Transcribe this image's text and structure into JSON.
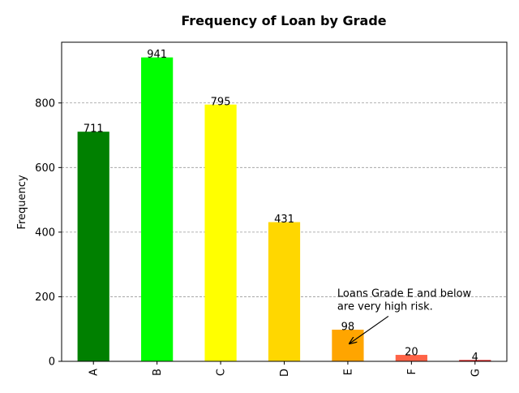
{
  "chart_data": {
    "type": "bar",
    "title": "Frequency of Loan by Grade",
    "xlabel": "",
    "ylabel": "Frequency",
    "categories": [
      "A",
      "B",
      "C",
      "D",
      "E",
      "F",
      "G"
    ],
    "values": [
      711,
      941,
      795,
      431,
      98,
      20,
      4
    ],
    "colors": [
      "#008000",
      "#00ff00",
      "#ffff00",
      "#ffd700",
      "#ffa500",
      "#ff6347",
      "#dc1414"
    ],
    "ylim": [
      0,
      988
    ],
    "yticks": [
      0,
      200,
      400,
      600,
      800
    ],
    "grid": "y-dashed",
    "annotation": {
      "lines": [
        "Loans Grade E and below",
        "are very high risk."
      ],
      "arrow_to": {
        "category": "E",
        "value": 55
      },
      "text_anchor": {
        "category": "E",
        "value": 200
      }
    }
  }
}
